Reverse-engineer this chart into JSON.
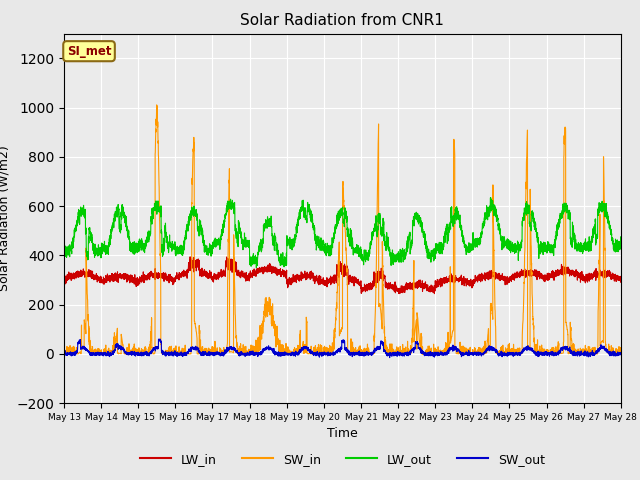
{
  "title": "Solar Radiation from CNR1",
  "xlabel": "Time",
  "ylabel": "Solar Radiation (W/m2)",
  "annotation_text": "SI_met",
  "annotation_color": "#8B0000",
  "annotation_bg": "#FFFF99",
  "annotation_border": "#8B6914",
  "ylim": [
    -200,
    1300
  ],
  "yticks": [
    -200,
    0,
    200,
    400,
    600,
    800,
    1000,
    1200
  ],
  "fig_facecolor": "#E8E8E8",
  "ax_facecolor": "#EBEBEB",
  "line_colors": {
    "LW_in": "#CC0000",
    "SW_in": "#FF9900",
    "LW_out": "#00CC00",
    "SW_out": "#0000CC"
  },
  "start_day": 13,
  "end_day": 28,
  "points_per_day": 288
}
